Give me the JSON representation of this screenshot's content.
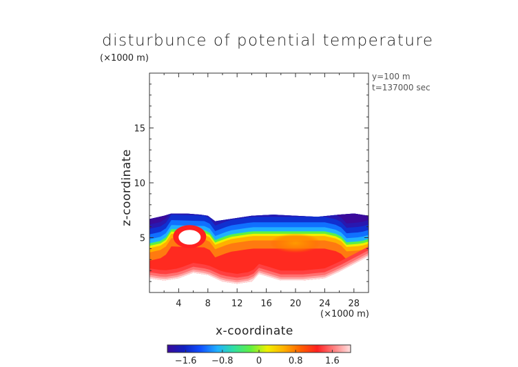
{
  "title": "disturbunce of potential temperature",
  "y_unit": "(×1000 m)",
  "x_unit": "(×1000 m)",
  "info": [
    "y=100 m",
    "t=137000 sec"
  ],
  "chart_data": {
    "type": "heatmap",
    "title": "disturbunce of potential temperature",
    "xlabel": "x-coordinate",
    "ylabel": "z-coordinate",
    "xlim": [
      0,
      30
    ],
    "ylim": [
      0,
      20
    ],
    "x_ticks": [
      4,
      8,
      12,
      16,
      20,
      24,
      28
    ],
    "y_ticks": [
      5,
      10,
      15
    ],
    "colorbar": {
      "range": [
        -2.0,
        2.0
      ],
      "ticks": [
        -1.6,
        -0.8,
        0,
        0.8,
        1.6
      ],
      "tick_labels": [
        "−1.6",
        "−0.8",
        "0",
        "0.8",
        "1.6"
      ],
      "colormap": [
        "#3a0a9a",
        "#1020c0",
        "#1050ff",
        "#20b0ff",
        "#30e0a0",
        "#60f040",
        "#f0f000",
        "#ffb000",
        "#ff6000",
        "#ff2020",
        "#ff8080",
        "#ffe0e0"
      ]
    },
    "field": {
      "top_boundary": [
        [
          0,
          6.7
        ],
        [
          2,
          7.0
        ],
        [
          3,
          7.2
        ],
        [
          5,
          7.2
        ],
        [
          7,
          7.1
        ],
        [
          8,
          7.0
        ],
        [
          9,
          6.5
        ],
        [
          11,
          6.7
        ],
        [
          14,
          7.0
        ],
        [
          17,
          7.1
        ],
        [
          20,
          7.0
        ],
        [
          23,
          6.9
        ],
        [
          26,
          7.1
        ],
        [
          28,
          7.2
        ],
        [
          30,
          7.0
        ]
      ],
      "bottom_boundary": [
        [
          0,
          1.3
        ],
        [
          2,
          1.1
        ],
        [
          4,
          1.3
        ],
        [
          6,
          1.8
        ],
        [
          8,
          1.6
        ],
        [
          10,
          1.0
        ],
        [
          12,
          0.8
        ],
        [
          14,
          1.0
        ],
        [
          15,
          1.7
        ],
        [
          16,
          1.5
        ],
        [
          18,
          1.1
        ],
        [
          21,
          1.1
        ],
        [
          24,
          1.3
        ],
        [
          26,
          1.9
        ],
        [
          28,
          2.6
        ],
        [
          30,
          3.3
        ]
      ],
      "blue_green_interface": [
        [
          0,
          4.5
        ],
        [
          2,
          4.8
        ],
        [
          3,
          5.8
        ],
        [
          8,
          5.7
        ],
        [
          9,
          4.8
        ],
        [
          11,
          5.3
        ],
        [
          14,
          5.6
        ],
        [
          17,
          5.6
        ],
        [
          20,
          5.6
        ],
        [
          24,
          5.6
        ],
        [
          26,
          5.3
        ],
        [
          27,
          4.6
        ],
        [
          29,
          4.7
        ],
        [
          30,
          4.9
        ]
      ],
      "warm_blob": {
        "center": [
          5.5,
          5.1
        ],
        "radius": [
          1.7,
          0.8
        ]
      },
      "orange_patch": {
        "center": [
          20,
          4.5
        ],
        "radius": [
          3.5,
          0.9
        ]
      }
    }
  }
}
